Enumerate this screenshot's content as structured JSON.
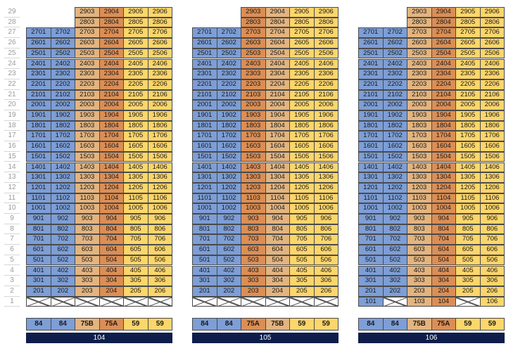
{
  "floor_labels": [
    "29",
    "28",
    "27",
    "26",
    "25",
    "24",
    "23",
    "22",
    "21",
    "20",
    "19",
    "18",
    "17",
    "16",
    "15",
    "14",
    "13",
    "12",
    "11",
    "10",
    "9",
    "8",
    "7",
    "6",
    "5",
    "4",
    "3",
    "2",
    "1"
  ],
  "colors": {
    "blue": "#7d9ed6",
    "tan": "#e3b47f",
    "orange": "#dc8e54",
    "yellow": "#fcd66a",
    "navy": "#0e1d4a"
  },
  "buildings": [
    {
      "name": "104",
      "unit_types": [
        "84",
        "84",
        "75B",
        "75A",
        "59",
        "59"
      ],
      "floor1_units": [
        "",
        "",
        "",
        "",
        "",
        ""
      ]
    },
    {
      "name": "105",
      "unit_types": [
        "84",
        "84",
        "75A",
        "75B",
        "59",
        "59"
      ],
      "floor1_units": [
        "",
        "",
        "",
        "",
        "",
        ""
      ]
    },
    {
      "name": "106",
      "unit_types": [
        "84",
        "84",
        "75B",
        "75A",
        "59",
        "59"
      ],
      "floor1_units": [
        "101",
        "",
        "103",
        "104",
        "",
        "106"
      ]
    }
  ]
}
